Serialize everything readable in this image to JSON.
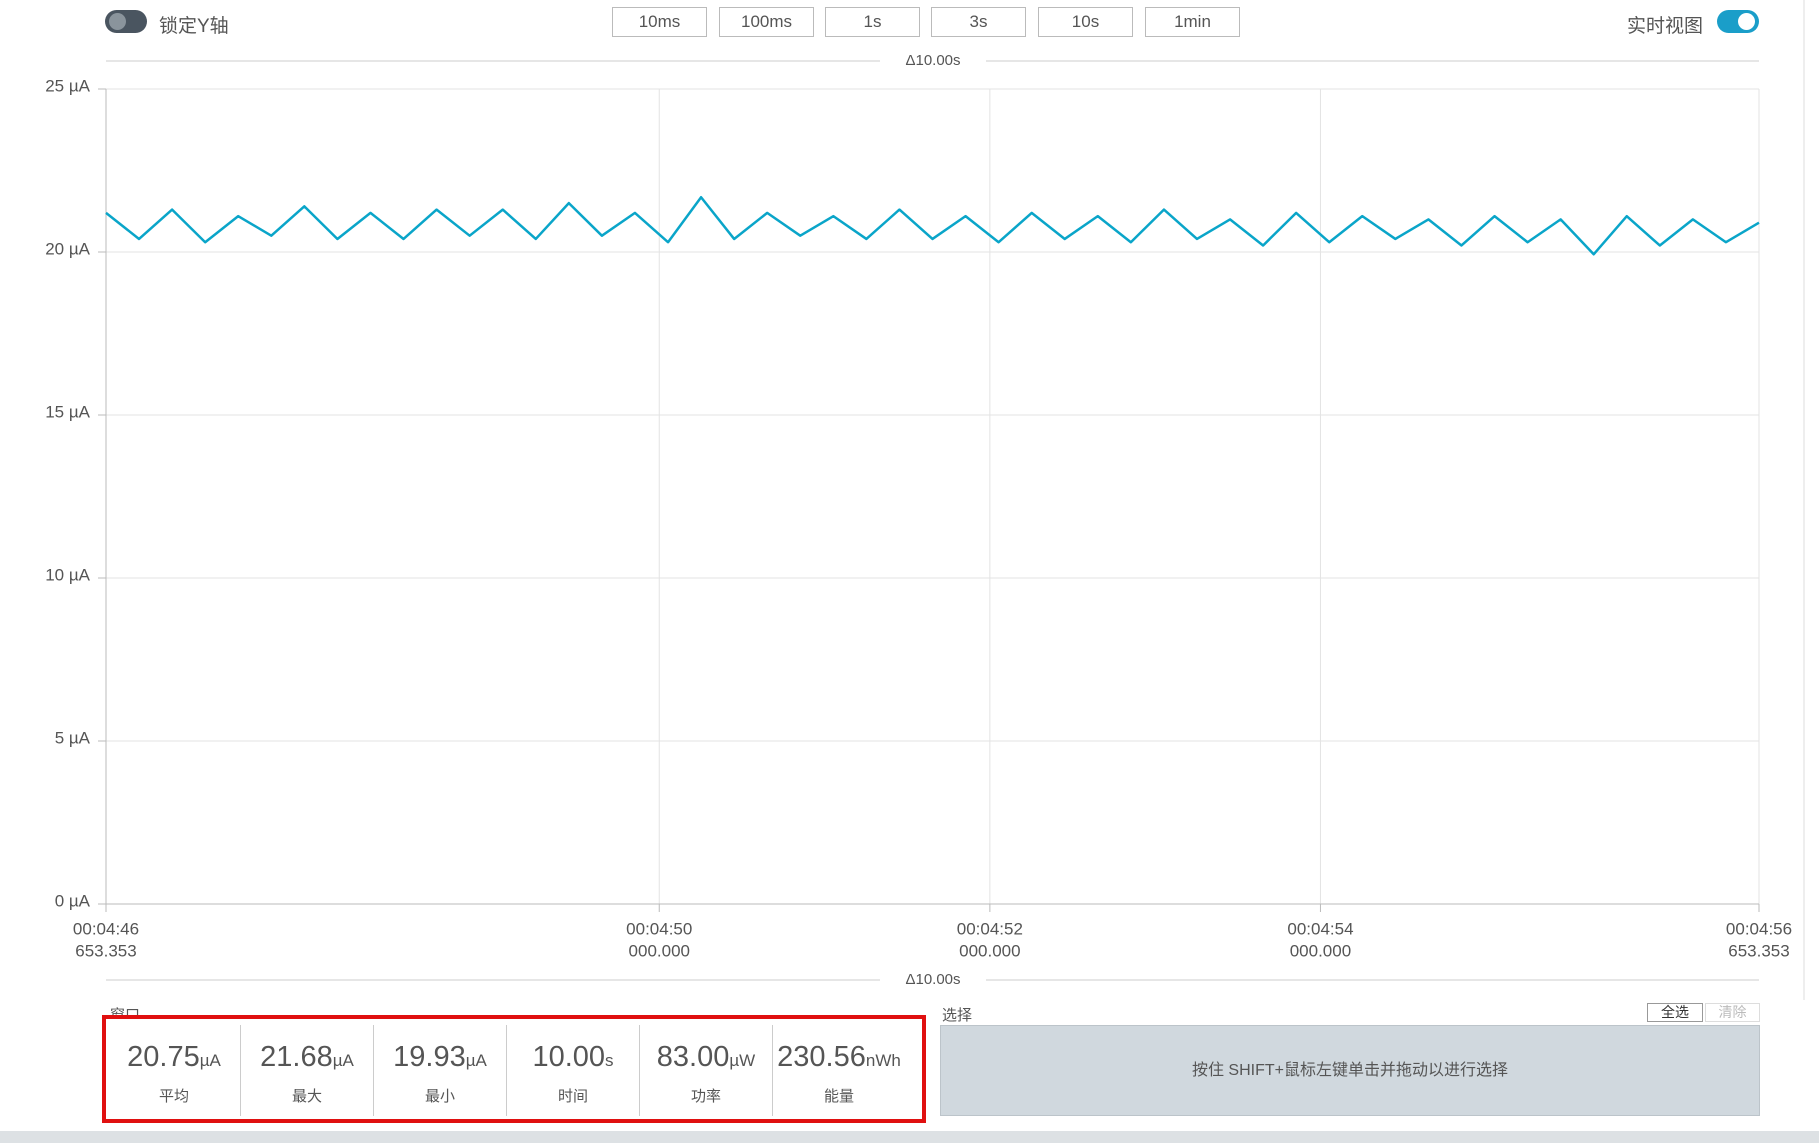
{
  "toolbar": {
    "lock_label": "锁定Y轴",
    "live_label": "实时视图",
    "ranges": [
      "10ms",
      "100ms",
      "1s",
      "3s",
      "10s",
      "1min"
    ]
  },
  "chart_data": {
    "type": "line",
    "delta_label": "Δ10.00s",
    "color": "#0aa5c9",
    "grid": true,
    "ylim": [
      0,
      25
    ],
    "yticks": [
      {
        "value": 0,
        "label": "0 µA"
      },
      {
        "value": 5,
        "label": "5 µA"
      },
      {
        "value": 10,
        "label": "10 µA"
      },
      {
        "value": 15,
        "label": "15 µA"
      },
      {
        "value": 20,
        "label": "20 µA"
      },
      {
        "value": 25,
        "label": "25 µA"
      }
    ],
    "xlim": [
      286.653,
      296.653
    ],
    "xticks": [
      {
        "value": 286.653,
        "label": [
          "00:04:46",
          "653.353"
        ]
      },
      {
        "value": 290,
        "label": [
          "00:04:50",
          "000.000"
        ]
      },
      {
        "value": 292,
        "label": [
          "00:04:52",
          "000.000"
        ]
      },
      {
        "value": 294,
        "label": [
          "00:04:54",
          "000.000"
        ]
      },
      {
        "value": 296.653,
        "label": [
          "00:04:56",
          "653.353"
        ]
      }
    ],
    "x": [
      286.653,
      286.853,
      287.053,
      287.253,
      287.453,
      287.653,
      287.853,
      288.053,
      288.253,
      288.453,
      288.653,
      288.853,
      289.053,
      289.253,
      289.453,
      289.653,
      289.853,
      290.053,
      290.253,
      290.453,
      290.653,
      290.853,
      291.053,
      291.253,
      291.453,
      291.653,
      291.853,
      292.053,
      292.253,
      292.453,
      292.653,
      292.853,
      293.053,
      293.253,
      293.453,
      293.653,
      293.853,
      294.053,
      294.253,
      294.453,
      294.653,
      294.853,
      295.053,
      295.253,
      295.453,
      295.653,
      295.853,
      296.053,
      296.253,
      296.453,
      296.653
    ],
    "values": [
      21.2,
      20.4,
      21.3,
      20.3,
      21.1,
      20.5,
      21.4,
      20.4,
      21.2,
      20.4,
      21.3,
      20.5,
      21.3,
      20.4,
      21.5,
      20.5,
      21.2,
      20.3,
      21.68,
      20.4,
      21.2,
      20.5,
      21.1,
      20.4,
      21.3,
      20.4,
      21.1,
      20.3,
      21.2,
      20.4,
      21.1,
      20.3,
      21.3,
      20.4,
      21.0,
      20.2,
      21.2,
      20.3,
      21.1,
      20.4,
      21.0,
      20.2,
      21.1,
      20.3,
      21.0,
      19.93,
      21.1,
      20.2,
      21.0,
      20.3,
      20.9
    ]
  },
  "window": {
    "title": "窗口",
    "stats": [
      {
        "value": "20.75",
        "unit": "µA",
        "label": "平均"
      },
      {
        "value": "21.68",
        "unit": "µA",
        "label": "最大"
      },
      {
        "value": "19.93",
        "unit": "µA",
        "label": "最小"
      },
      {
        "value": "10.00",
        "unit": "s",
        "label": "时间"
      },
      {
        "value": "83.00",
        "unit": "µW",
        "label": "功率"
      },
      {
        "value": "230.56",
        "unit": "nWh",
        "label": "能量"
      }
    ]
  },
  "selection": {
    "title": "选择",
    "select_all": "全选",
    "clear": "清除",
    "hint": "按住 SHIFT+鼠标左键单击并拖动以进行选择"
  }
}
